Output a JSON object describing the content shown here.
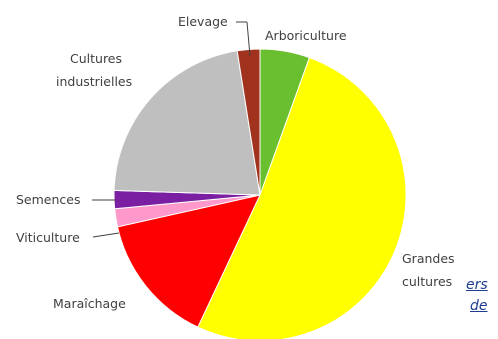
{
  "chart_data": {
    "type": "pie",
    "title": "",
    "categories": [
      "Arboriculture",
      "Grandes cultures",
      "Maraîchage",
      "Viticulture",
      "Semences",
      "Cultures industrielles",
      "Elevage"
    ],
    "values": [
      5.5,
      51.5,
      14.5,
      2.0,
      2.0,
      22.0,
      2.5
    ],
    "colors": [
      "#6abf2e",
      "#ffff00",
      "#ff0000",
      "#ff99cc",
      "#7a1fa2",
      "#bfbfbf",
      "#a0321e"
    ],
    "labels": {
      "arboriculture": "Arboriculture",
      "grandes_cultures_line1": "Grandes",
      "grandes_cultures_line2": "cultures",
      "maraichage": "Maraîchage",
      "viticulture": "Viticulture",
      "semences": "Semences",
      "cultures_industrielles_line1": "Cultures",
      "cultures_industrielles_line2": "industrielles",
      "elevage": "Elevage"
    }
  },
  "bleed_text": {
    "line1": "ers",
    "line2": "de"
  }
}
